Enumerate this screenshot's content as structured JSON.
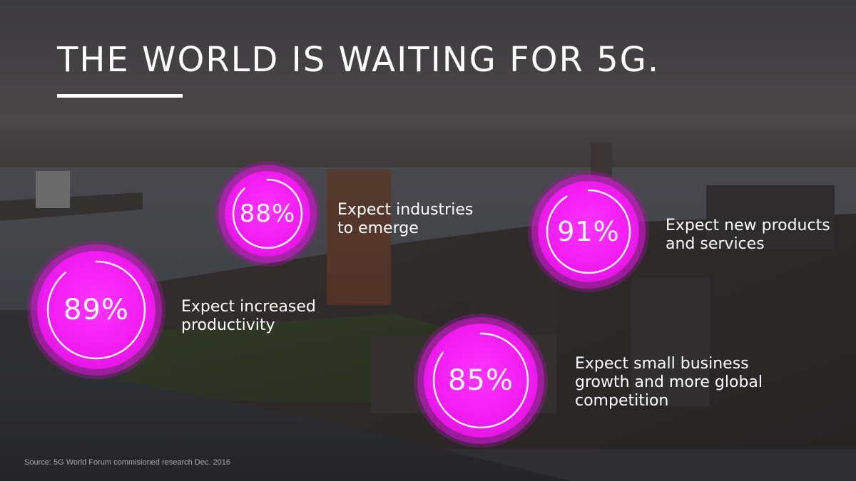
{
  "title": "THE WORLD IS WAITING FOR 5G.",
  "stats": [
    {
      "value": "88%",
      "fraction": 0.88,
      "label_lines": [
        "Expect industries",
        "to emerge"
      ]
    },
    {
      "value": "91%",
      "fraction": 0.91,
      "label_lines": [
        "Expect new products",
        "and services"
      ]
    },
    {
      "value": "89%",
      "fraction": 0.89,
      "label_lines": [
        "Expect increased",
        "productivity"
      ]
    },
    {
      "value": "85%",
      "fraction": 0.85,
      "label_lines": [
        "Expect small business",
        "growth and more global",
        "competition"
      ]
    }
  ],
  "source": "Source: 5G World Forum commisioned research Dec. 2016",
  "colors": {
    "accent": "#f21cf2",
    "text": "#ffffff",
    "source_text": "#a9a9ab"
  }
}
